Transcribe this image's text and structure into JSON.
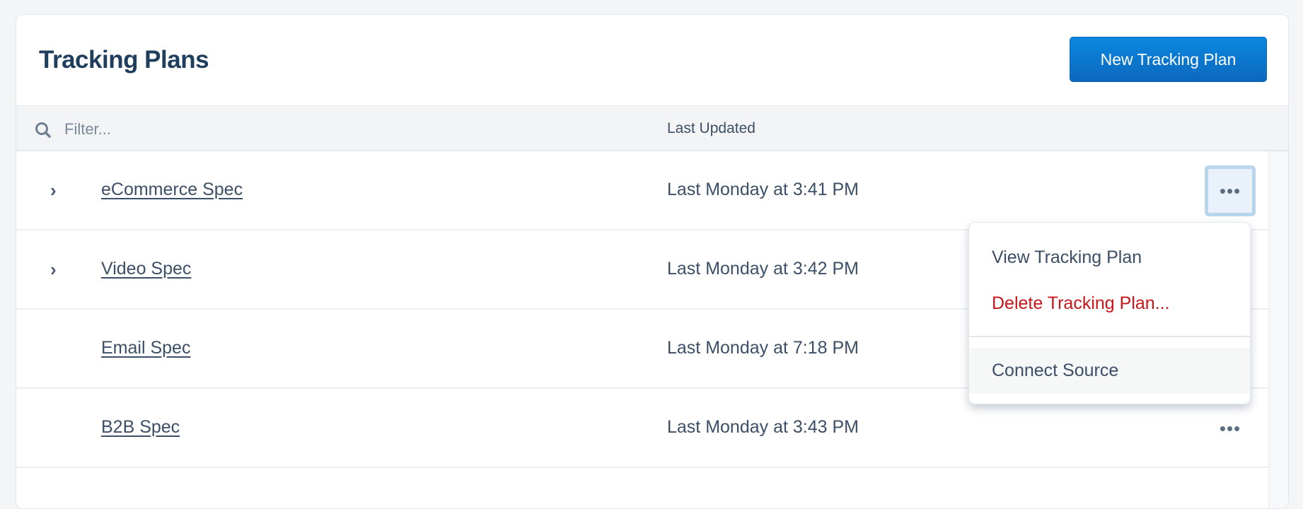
{
  "header": {
    "title": "Tracking Plans",
    "new_button": "New Tracking Plan"
  },
  "table": {
    "filter_placeholder": "Filter...",
    "columns": {
      "last_updated": "Last Updated"
    },
    "rows": [
      {
        "name": "eCommerce Spec",
        "updated": "Last Monday at 3:41 PM",
        "expandable": true
      },
      {
        "name": "Video Spec",
        "updated": "Last Monday at 3:42 PM",
        "expandable": true
      },
      {
        "name": "Email Spec",
        "updated": "Last Monday at 7:18 PM",
        "expandable": false
      },
      {
        "name": "B2B Spec",
        "updated": "Last Monday at 3:43 PM",
        "expandable": false
      }
    ]
  },
  "menu": {
    "view": "View Tracking Plan",
    "delete": "Delete Tracking Plan...",
    "connect": "Connect Source"
  },
  "icons": {
    "expand": "›",
    "more": "•••"
  },
  "colors": {
    "primary": "#0b78d0",
    "danger": "#c8151a",
    "text": "#3c4f66"
  }
}
